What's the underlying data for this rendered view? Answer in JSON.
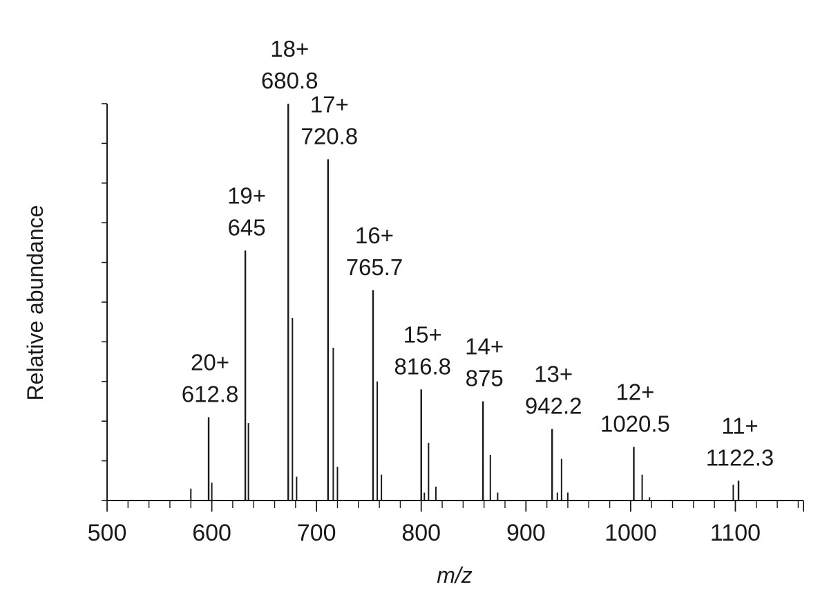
{
  "chart_data": {
    "type": "bar",
    "title": "",
    "xlabel": "m/z",
    "ylabel": "Relative abundance",
    "xlim": [
      500,
      1165
    ],
    "ylim": [
      0,
      100
    ],
    "x_ticks": [
      500,
      600,
      700,
      800,
      900,
      1000,
      1100
    ],
    "x_tick_labels": [
      "500",
      "600",
      "700",
      "800",
      "900",
      "1000",
      "1100"
    ],
    "x_minor_step": 20,
    "y_minor_ticks": 10,
    "grid": false,
    "peaks": [
      {
        "charge": "20+",
        "mz": "612.8",
        "x": 597,
        "y": 21
      },
      {
        "charge": "19+",
        "mz": "645",
        "x": 632,
        "y": 63
      },
      {
        "charge": "18+",
        "mz": "680.8",
        "x": 673,
        "y": 100
      },
      {
        "charge": "17+",
        "mz": "720.8",
        "x": 711,
        "y": 86
      },
      {
        "charge": "16+",
        "mz": "765.7",
        "x": 754,
        "y": 53
      },
      {
        "charge": "15+",
        "mz": "816.8",
        "x": 800,
        "y": 28
      },
      {
        "charge": "14+",
        "mz": "875",
        "x": 859,
        "y": 25
      },
      {
        "charge": "13+",
        "mz": "942.2",
        "x": 925,
        "y": 18
      },
      {
        "charge": "12+",
        "mz": "1020.5",
        "x": 1003,
        "y": 13.5
      },
      {
        "charge": "11+",
        "mz": "1122.3",
        "x": 1103,
        "y": 5
      }
    ],
    "minor_peaks": [
      {
        "x": 580,
        "y": 3
      },
      {
        "x": 600,
        "y": 4.5
      },
      {
        "x": 635,
        "y": 19.5
      },
      {
        "x": 677,
        "y": 46
      },
      {
        "x": 681,
        "y": 6
      },
      {
        "x": 716,
        "y": 38.5
      },
      {
        "x": 720,
        "y": 8.5
      },
      {
        "x": 758,
        "y": 30
      },
      {
        "x": 762,
        "y": 6.5
      },
      {
        "x": 803,
        "y": 2
      },
      {
        "x": 807,
        "y": 14.5
      },
      {
        "x": 814,
        "y": 3.5
      },
      {
        "x": 866,
        "y": 11.5
      },
      {
        "x": 873,
        "y": 2
      },
      {
        "x": 930,
        "y": 2
      },
      {
        "x": 934,
        "y": 10.5
      },
      {
        "x": 940,
        "y": 2
      },
      {
        "x": 1011,
        "y": 6.5
      },
      {
        "x": 1018,
        "y": 0.8
      },
      {
        "x": 1098,
        "y": 4
      }
    ]
  }
}
